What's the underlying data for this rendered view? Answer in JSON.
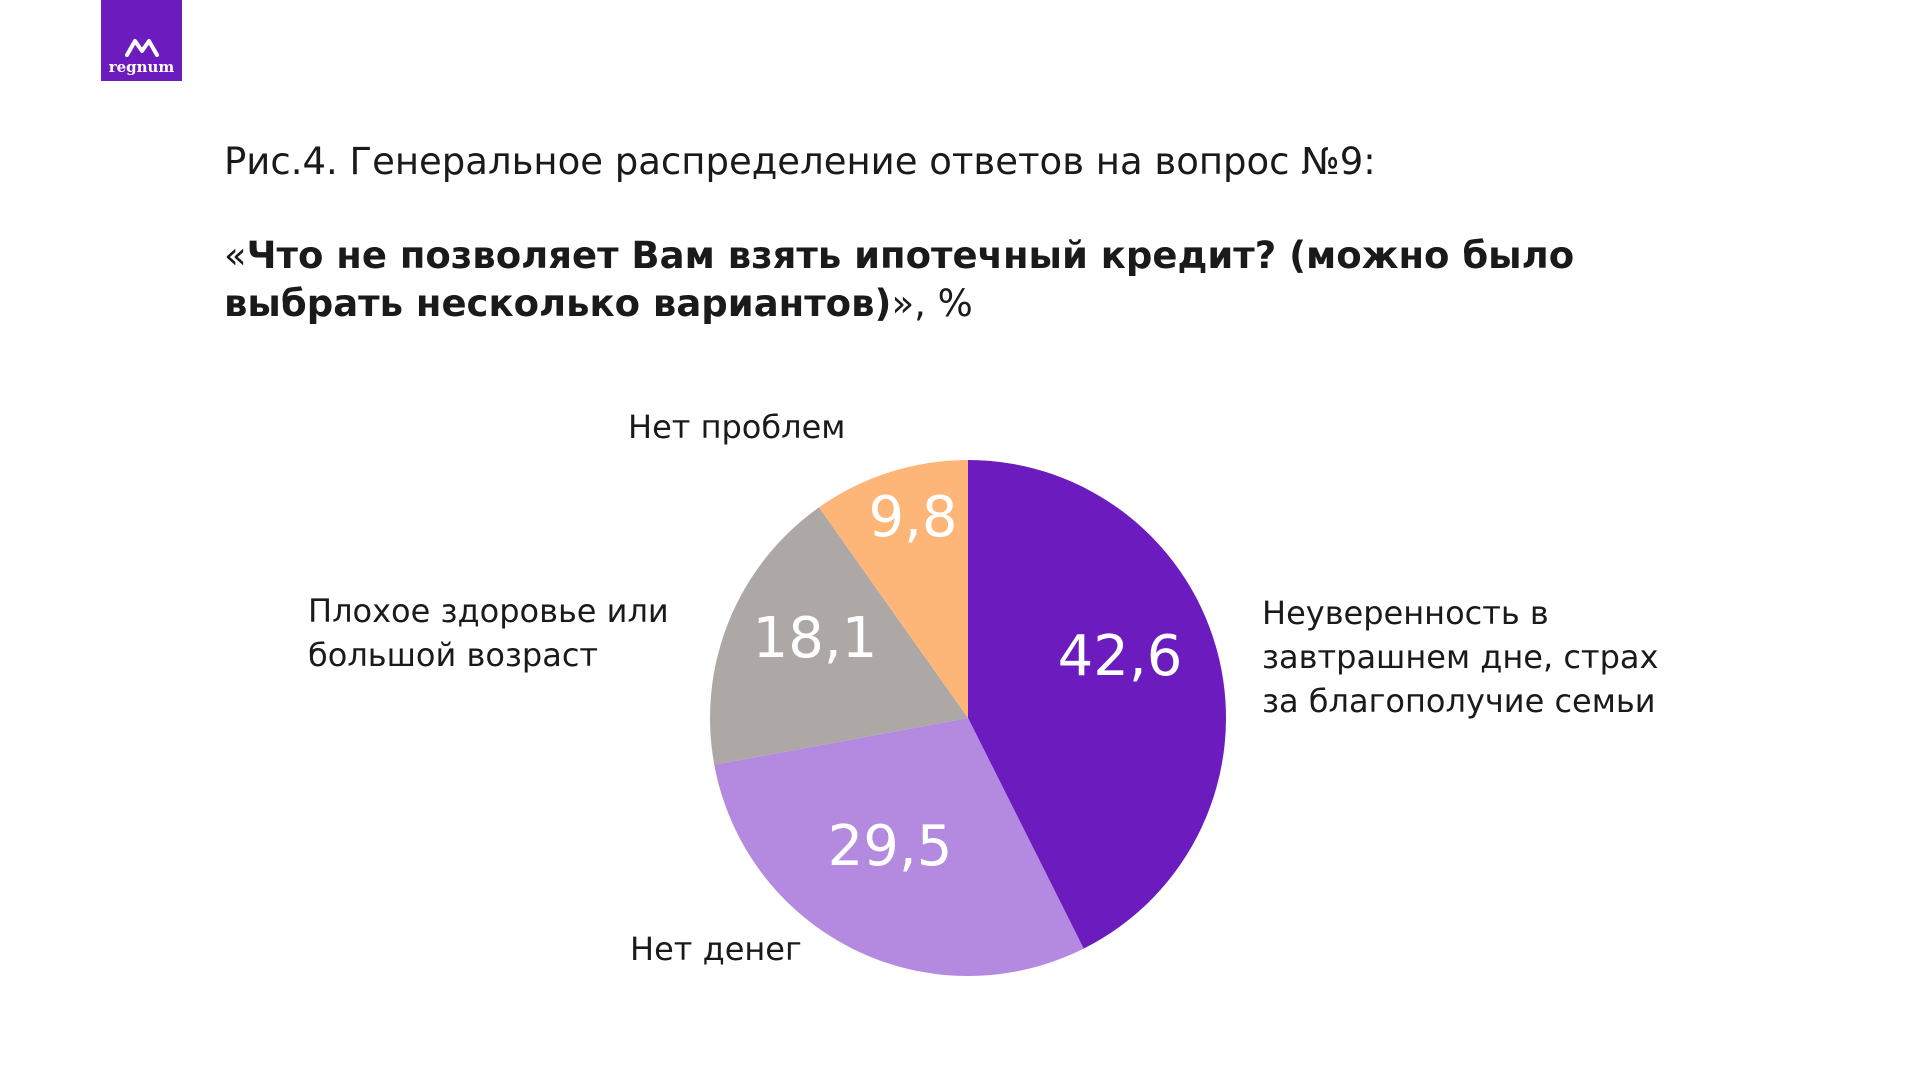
{
  "logo": {
    "text": "regnum",
    "icon": "mountain-icon",
    "color": "#6c1bbf"
  },
  "caption": "Рис.4. Генеральное распределение ответов на вопрос №9:",
  "question": {
    "open_quote": "«",
    "bold_text": "Что не позволяет Вам взять ипотечный кредит? (можно было выбрать несколько вариантов)",
    "tail": "», %"
  },
  "chart_data": {
    "type": "pie",
    "title": "",
    "slices": [
      {
        "label": "Неуверенность в завтрашнем дне, страх за благополучие семьи",
        "label_lines": [
          "Неуверенность в",
          "завтрашнем дне, страх",
          "за благополучие семьи"
        ],
        "value": 42.6,
        "value_text": "42,6",
        "color": "#6c1bbf"
      },
      {
        "label": "Нет денег",
        "label_lines": [
          "Нет денег"
        ],
        "value": 29.5,
        "value_text": "29,5",
        "color": "#b48ae0"
      },
      {
        "label": "Плохое здоровье или большой возраст",
        "label_lines": [
          "Плохое здоровье или",
          "большой возраст"
        ],
        "value": 18.1,
        "value_text": "18,1",
        "color": "#ada8a6"
      },
      {
        "label": "Нет проблем",
        "label_lines": [
          "Нет проблем"
        ],
        "value": 9.8,
        "value_text": "9,8",
        "color": "#fdb678"
      }
    ]
  }
}
